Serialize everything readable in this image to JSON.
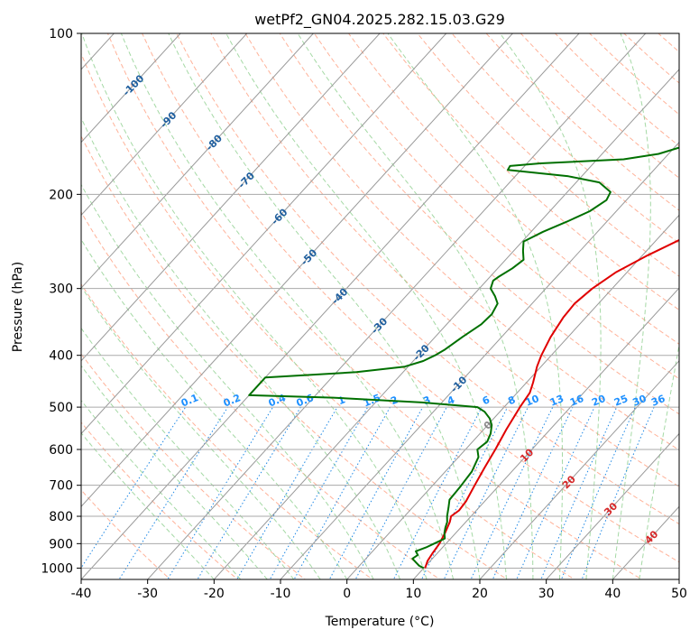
{
  "chart_data": {
    "type": "line",
    "title": "wetPf2_GN04.2025.282.15.03.G29",
    "xlabel": "Temperature (°C)",
    "ylabel": "Pressure (hPa)",
    "xlim": [
      -40,
      50
    ],
    "ylim": [
      1050,
      100
    ],
    "y_scale": "log",
    "grid": true,
    "x_ticks": [
      -40,
      -30,
      -20,
      -10,
      0,
      10,
      20,
      30,
      40,
      50
    ],
    "y_ticks": [
      1000,
      900,
      800,
      700,
      600,
      500,
      400,
      300,
      200,
      100
    ],
    "series": [
      {
        "color": "#e00000",
        "points": [
          {
            "p": 1000,
            "t": 10.2
          },
          {
            "p": 970,
            "t": 9.6
          },
          {
            "p": 940,
            "t": 9.3
          },
          {
            "p": 900,
            "t": 9.0
          },
          {
            "p": 860,
            "t": 8.4
          },
          {
            "p": 820,
            "t": 7.6
          },
          {
            "p": 800,
            "t": 7.0
          },
          {
            "p": 780,
            "t": 7.4
          },
          {
            "p": 750,
            "t": 7.2
          },
          {
            "p": 700,
            "t": 6.3
          },
          {
            "p": 650,
            "t": 5.4
          },
          {
            "p": 600,
            "t": 4.5
          },
          {
            "p": 550,
            "t": 3.4
          },
          {
            "p": 500,
            "t": 2.4
          },
          {
            "p": 470,
            "t": 1.9
          },
          {
            "p": 450,
            "t": 1.0
          },
          {
            "p": 420,
            "t": -0.6
          },
          {
            "p": 400,
            "t": -1.5
          },
          {
            "p": 370,
            "t": -2.6
          },
          {
            "p": 340,
            "t": -3.4
          },
          {
            "p": 320,
            "t": -3.6
          },
          {
            "p": 300,
            "t": -3.0
          },
          {
            "p": 280,
            "t": -1.7
          },
          {
            "p": 260,
            "t": 0.8
          },
          {
            "p": 240,
            "t": 4.0
          },
          {
            "p": 220,
            "t": 7.5
          },
          {
            "p": 210,
            "t": 8.8
          },
          {
            "p": 200,
            "t": 10.0
          },
          {
            "p": 190,
            "t": 11.0
          },
          {
            "p": 180,
            "t": 12.5
          },
          {
            "p": 170,
            "t": 14.5
          },
          {
            "p": 160,
            "t": 16.5
          },
          {
            "p": 150,
            "t": 18.3
          },
          {
            "p": 140,
            "t": 19.8
          },
          {
            "p": 132,
            "t": 21.5
          },
          {
            "p": 125,
            "t": 23.5
          },
          {
            "p": 120,
            "t": 24.2
          },
          {
            "p": 115,
            "t": 25.2
          },
          {
            "p": 110,
            "t": 27.0
          },
          {
            "p": 105,
            "t": 29.3
          },
          {
            "p": 100,
            "t": 31.5
          }
        ]
      },
      {
        "color": "#007000",
        "points": [
          {
            "p": 1000,
            "t": 10.0
          },
          {
            "p": 990,
            "t": 9.0
          },
          {
            "p": 975,
            "t": 8.0
          },
          {
            "p": 960,
            "t": 7.0
          },
          {
            "p": 945,
            "t": 7.3
          },
          {
            "p": 930,
            "t": 6.5
          },
          {
            "p": 915,
            "t": 7.5
          },
          {
            "p": 900,
            "t": 8.2
          },
          {
            "p": 880,
            "t": 9.1
          },
          {
            "p": 860,
            "t": 8.3
          },
          {
            "p": 840,
            "t": 7.7
          },
          {
            "p": 820,
            "t": 7.2
          },
          {
            "p": 800,
            "t": 6.4
          },
          {
            "p": 770,
            "t": 5.4
          },
          {
            "p": 745,
            "t": 4.5
          },
          {
            "p": 720,
            "t": 4.4
          },
          {
            "p": 700,
            "t": 4.3
          },
          {
            "p": 660,
            "t": 4.0
          },
          {
            "p": 620,
            "t": 3.0
          },
          {
            "p": 600,
            "t": 1.8
          },
          {
            "p": 580,
            "t": 2.2
          },
          {
            "p": 560,
            "t": 1.6
          },
          {
            "p": 540,
            "t": 0.6
          },
          {
            "p": 525,
            "t": -0.6
          },
          {
            "p": 510,
            "t": -2.3
          },
          {
            "p": 500,
            "t": -4.0
          },
          {
            "p": 490,
            "t": -13.0
          },
          {
            "p": 480,
            "t": -27.0
          },
          {
            "p": 475,
            "t": -40.0
          },
          {
            "p": 440,
            "t": -40.0
          },
          {
            "p": 430,
            "t": -27.0
          },
          {
            "p": 420,
            "t": -20.5
          },
          {
            "p": 410,
            "t": -18.5
          },
          {
            "p": 400,
            "t": -17.5
          },
          {
            "p": 390,
            "t": -16.8
          },
          {
            "p": 370,
            "t": -15.9
          },
          {
            "p": 350,
            "t": -14.8
          },
          {
            "p": 335,
            "t": -14.6
          },
          {
            "p": 320,
            "t": -15.2
          },
          {
            "p": 310,
            "t": -16.6
          },
          {
            "p": 300,
            "t": -18.3
          },
          {
            "p": 290,
            "t": -19.0
          },
          {
            "p": 285,
            "t": -18.7
          },
          {
            "p": 275,
            "t": -17.8
          },
          {
            "p": 265,
            "t": -17.3
          },
          {
            "p": 255,
            "t": -18.6
          },
          {
            "p": 245,
            "t": -19.8
          },
          {
            "p": 235,
            "t": -18.2
          },
          {
            "p": 225,
            "t": -16.0
          },
          {
            "p": 215,
            "t": -14.0
          },
          {
            "p": 205,
            "t": -13.0
          },
          {
            "p": 198,
            "t": -13.5
          },
          {
            "p": 190,
            "t": -16.5
          },
          {
            "p": 185,
            "t": -22.0
          },
          {
            "p": 180,
            "t": -32.0
          },
          {
            "p": 177,
            "t": -32.2
          },
          {
            "p": 175,
            "t": -28.0
          },
          {
            "p": 172,
            "t": -16.0
          },
          {
            "p": 168,
            "t": -11.5
          },
          {
            "p": 163,
            "t": -9.0
          },
          {
            "p": 155,
            "t": -8.4
          },
          {
            "p": 145,
            "t": -8.0
          },
          {
            "p": 138,
            "t": -7.5
          },
          {
            "p": 132,
            "t": -6.8
          },
          {
            "p": 126,
            "t": -5.5
          },
          {
            "p": 120,
            "t": -3.5
          },
          {
            "p": 115,
            "t": -1.7
          },
          {
            "p": 110,
            "t": -0.6
          },
          {
            "p": 105,
            "t": 0.3
          },
          {
            "p": 100,
            "t": 1.0
          }
        ]
      }
    ],
    "isotherm_labels": [
      "-100",
      "-90",
      "-80",
      "-70",
      "-60",
      "-50",
      "-40",
      "-30",
      "-20",
      "-10",
      "0",
      "10",
      "20",
      "30",
      "40"
    ],
    "mixing_ratio_labels": [
      "0.1",
      "0.2",
      "0.4",
      "0.6",
      "1",
      "1.5",
      "2",
      "3",
      "4",
      "6",
      "8",
      "10",
      "13",
      "16",
      "20",
      "25",
      "30",
      "36"
    ],
    "colors": {
      "temperature": "#e00000",
      "dewpoint": "#007000",
      "isotherm": "#888888",
      "isotherm_label": "#1f5f9f",
      "isotherm_label_warm": "#d62728",
      "dry_adiabat": "#ff9f80",
      "moist_adiabat": "#8fcf8f",
      "mixing_ratio": "#1e88e5",
      "mixing_ratio_label": "#1e90ff",
      "curved": "#c8b08a"
    }
  }
}
